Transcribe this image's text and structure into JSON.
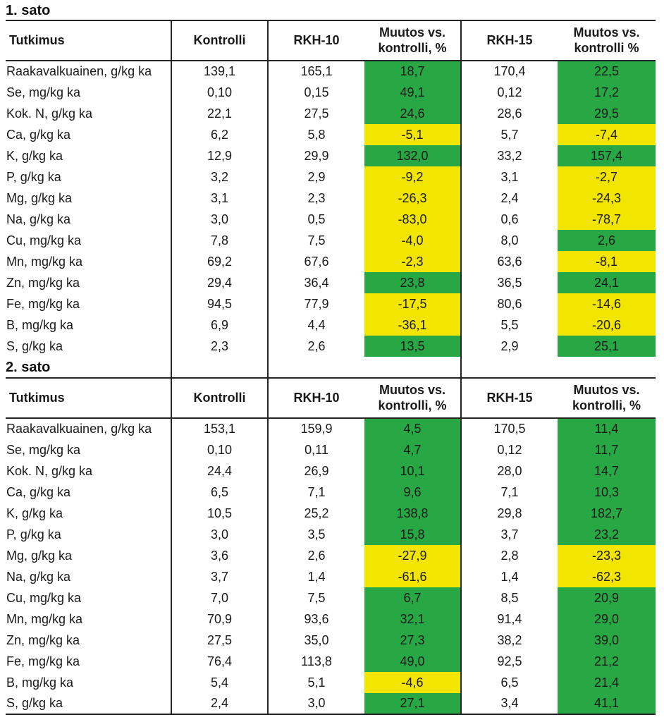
{
  "colors": {
    "pos": "#28A745",
    "neg": "#F2E500"
  },
  "sections": [
    {
      "title": "1. sato",
      "headers": [
        "Tutkimus",
        "Kontrolli",
        "RKH-10",
        "Muutos vs. kontrolli, %",
        "RKH-15",
        "Muutos vs. kontrolli %"
      ],
      "rows": [
        {
          "label": "Raakavalkuainen, g/kg ka",
          "kontrolli": "139,1",
          "rkh10": "165,1",
          "chg10": "18,7",
          "trend10": "pos",
          "rkh15": "170,4",
          "chg15": "22,5",
          "trend15": "pos"
        },
        {
          "label": "Se, mg/kg ka",
          "kontrolli": "0,10",
          "rkh10": "0,15",
          "chg10": "49,1",
          "trend10": "pos",
          "rkh15": "0,12",
          "chg15": "17,2",
          "trend15": "pos"
        },
        {
          "label": "Kok. N, g/kg ka",
          "kontrolli": "22,1",
          "rkh10": "27,5",
          "chg10": "24,6",
          "trend10": "pos",
          "rkh15": "28,6",
          "chg15": "29,5",
          "trend15": "pos"
        },
        {
          "label": "Ca, g/kg ka",
          "kontrolli": "6,2",
          "rkh10": "5,8",
          "chg10": "-5,1",
          "trend10": "neg",
          "rkh15": "5,7",
          "chg15": "-7,4",
          "trend15": "neg"
        },
        {
          "label": "K, g/kg ka",
          "kontrolli": "12,9",
          "rkh10": "29,9",
          "chg10": "132,0",
          "trend10": "pos",
          "rkh15": "33,2",
          "chg15": "157,4",
          "trend15": "pos"
        },
        {
          "label": "P, g/kg ka",
          "kontrolli": "3,2",
          "rkh10": "2,9",
          "chg10": "-9,2",
          "trend10": "neg",
          "rkh15": "3,1",
          "chg15": "-2,7",
          "trend15": "neg"
        },
        {
          "label": "Mg, g/kg ka",
          "kontrolli": "3,1",
          "rkh10": "2,3",
          "chg10": "-26,3",
          "trend10": "neg",
          "rkh15": "2,4",
          "chg15": "-24,3",
          "trend15": "neg"
        },
        {
          "label": "Na, g/kg ka",
          "kontrolli": "3,0",
          "rkh10": "0,5",
          "chg10": "-83,0",
          "trend10": "neg",
          "rkh15": "0,6",
          "chg15": "-78,7",
          "trend15": "neg"
        },
        {
          "label": "Cu, mg/kg ka",
          "kontrolli": "7,8",
          "rkh10": "7,5",
          "chg10": "-4,0",
          "trend10": "neg",
          "rkh15": "8,0",
          "chg15": "2,6",
          "trend15": "pos"
        },
        {
          "label": "Mn, mg/kg ka",
          "kontrolli": "69,2",
          "rkh10": "67,6",
          "chg10": "-2,3",
          "trend10": "neg",
          "rkh15": "63,6",
          "chg15": "-8,1",
          "trend15": "neg"
        },
        {
          "label": "Zn, mg/kg ka",
          "kontrolli": "29,4",
          "rkh10": "36,4",
          "chg10": "23,8",
          "trend10": "pos",
          "rkh15": "36,5",
          "chg15": "24,1",
          "trend15": "pos"
        },
        {
          "label": "Fe, mg/kg ka",
          "kontrolli": "94,5",
          "rkh10": "77,9",
          "chg10": "-17,5",
          "trend10": "neg",
          "rkh15": "80,6",
          "chg15": "-14,6",
          "trend15": "neg"
        },
        {
          "label": "B, mg/kg ka",
          "kontrolli": "6,9",
          "rkh10": "4,4",
          "chg10": "-36,1",
          "trend10": "neg",
          "rkh15": "5,5",
          "chg15": "-20,6",
          "trend15": "neg"
        },
        {
          "label": "S, g/kg ka",
          "kontrolli": "2,3",
          "rkh10": "2,6",
          "chg10": "13,5",
          "trend10": "pos",
          "rkh15": "2,9",
          "chg15": "25,1",
          "trend15": "pos"
        }
      ]
    },
    {
      "title": "2. sato",
      "headers": [
        "Tutkimus",
        "Kontrolli",
        "RKH-10",
        "Muutos vs. kontrolli, %",
        "RKH-15",
        "Muutos vs. kontrolli, %"
      ],
      "rows": [
        {
          "label": "Raakavalkuainen, g/kg ka",
          "kontrolli": "153,1",
          "rkh10": "159,9",
          "chg10": "4,5",
          "trend10": "pos",
          "rkh15": "170,5",
          "chg15": "11,4",
          "trend15": "pos"
        },
        {
          "label": "Se, mg/kg ka",
          "kontrolli": "0,10",
          "rkh10": "0,11",
          "chg10": "4,7",
          "trend10": "pos",
          "rkh15": "0,12",
          "chg15": "11,7",
          "trend15": "pos"
        },
        {
          "label": "Kok. N, g/kg ka",
          "kontrolli": "24,4",
          "rkh10": "26,9",
          "chg10": "10,1",
          "trend10": "pos",
          "rkh15": "28,0",
          "chg15": "14,7",
          "trend15": "pos"
        },
        {
          "label": "Ca, g/kg ka",
          "kontrolli": "6,5",
          "rkh10": "7,1",
          "chg10": "9,6",
          "trend10": "pos",
          "rkh15": "7,1",
          "chg15": "10,3",
          "trend15": "pos"
        },
        {
          "label": "K, g/kg ka",
          "kontrolli": "10,5",
          "rkh10": "25,2",
          "chg10": "138,8",
          "trend10": "pos",
          "rkh15": "29,8",
          "chg15": "182,7",
          "trend15": "pos"
        },
        {
          "label": "P, g/kg ka",
          "kontrolli": "3,0",
          "rkh10": "3,5",
          "chg10": "15,8",
          "trend10": "pos",
          "rkh15": "3,7",
          "chg15": "23,2",
          "trend15": "pos"
        },
        {
          "label": "Mg, g/kg ka",
          "kontrolli": "3,6",
          "rkh10": "2,6",
          "chg10": "-27,9",
          "trend10": "neg",
          "rkh15": "2,8",
          "chg15": "-23,3",
          "trend15": "neg"
        },
        {
          "label": "Na, g/kg ka",
          "kontrolli": "3,7",
          "rkh10": "1,4",
          "chg10": "-61,6",
          "trend10": "neg",
          "rkh15": "1,4",
          "chg15": "-62,3",
          "trend15": "neg"
        },
        {
          "label": "Cu, mg/kg ka",
          "kontrolli": "7,0",
          "rkh10": "7,5",
          "chg10": "6,7",
          "trend10": "pos",
          "rkh15": "8,5",
          "chg15": "20,9",
          "trend15": "pos"
        },
        {
          "label": "Mn, mg/kg ka",
          "kontrolli": "70,9",
          "rkh10": "93,6",
          "chg10": "32,1",
          "trend10": "pos",
          "rkh15": "91,4",
          "chg15": "29,0",
          "trend15": "pos"
        },
        {
          "label": "Zn, mg/kg ka",
          "kontrolli": "27,5",
          "rkh10": "35,0",
          "chg10": "27,3",
          "trend10": "pos",
          "rkh15": "38,2",
          "chg15": "39,0",
          "trend15": "pos"
        },
        {
          "label": "Fe, mg/kg ka",
          "kontrolli": "76,4",
          "rkh10": "113,8",
          "chg10": "49,0",
          "trend10": "pos",
          "rkh15": "92,5",
          "chg15": "21,2",
          "trend15": "pos"
        },
        {
          "label": "B, mg/kg ka",
          "kontrolli": "5,4",
          "rkh10": "5,1",
          "chg10": "-4,6",
          "trend10": "neg",
          "rkh15": "6,5",
          "chg15": "21,4",
          "trend15": "pos"
        },
        {
          "label": "S, g/kg ka",
          "kontrolli": "2,4",
          "rkh10": "3,0",
          "chg10": "27,1",
          "trend10": "pos",
          "rkh15": "3,4",
          "chg15": "41,1",
          "trend15": "pos"
        }
      ]
    }
  ]
}
